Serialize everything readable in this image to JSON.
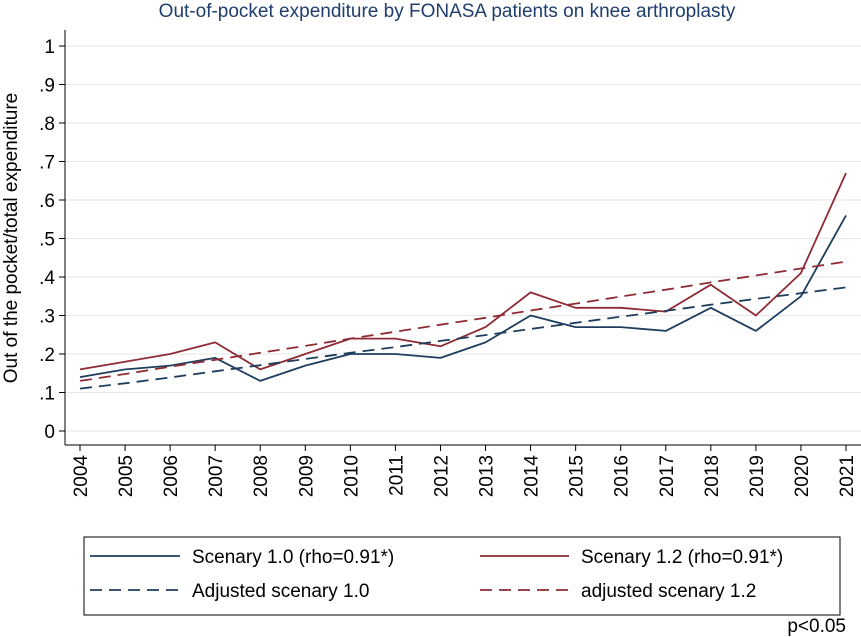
{
  "chart_data": {
    "type": "line",
    "title": "Out-of-pocket expenditure by FONASA patients on knee arthroplasty",
    "xlabel": "",
    "ylabel": "Out of the pocket/total expenditure",
    "x": [
      "2004",
      "2005",
      "2006",
      "2007",
      "2008",
      "2009",
      "2010",
      "2011",
      "2012",
      "2013",
      "2014",
      "2015",
      "2016",
      "2017",
      "2018",
      "2019",
      "2020",
      "2021"
    ],
    "ylim": [
      0,
      1
    ],
    "yticks": [
      0,
      0.1,
      0.2,
      0.3,
      0.4,
      0.5,
      0.6,
      0.7,
      0.8,
      0.9,
      1
    ],
    "ytick_labels": [
      "0",
      ".1",
      ".2",
      ".3",
      ".4",
      ".5",
      ".6",
      ".7",
      ".8",
      ".9",
      "1"
    ],
    "grid": true,
    "legend_position": "bottom",
    "series": [
      {
        "name": "Scenary 1.0 (rho=0.91*)",
        "color": "#1f3e5f",
        "style": "solid",
        "values": [
          0.14,
          0.16,
          0.17,
          0.19,
          0.13,
          0.17,
          0.2,
          0.2,
          0.19,
          0.23,
          0.3,
          0.27,
          0.27,
          0.26,
          0.32,
          0.26,
          0.35,
          0.56
        ]
      },
      {
        "name": "Scenary 1.2 (rho=0.91*)",
        "color": "#8e2b34",
        "style": "solid",
        "values": [
          0.16,
          0.18,
          0.2,
          0.23,
          0.16,
          0.2,
          0.24,
          0.24,
          0.22,
          0.27,
          0.36,
          0.32,
          0.32,
          0.31,
          0.38,
          0.3,
          0.41,
          0.67
        ]
      },
      {
        "name": "Adjusted scenary 1.0",
        "color": "#1f3e5f",
        "style": "dashed",
        "values": [
          0.11,
          0.124,
          0.139,
          0.155,
          0.171,
          0.187,
          0.203,
          0.218,
          0.234,
          0.249,
          0.265,
          0.281,
          0.297,
          0.312,
          0.328,
          0.343,
          0.358,
          0.373
        ]
      },
      {
        "name": "adjusted scenary 1.2",
        "color": "#8e2b34",
        "style": "dashed",
        "values": [
          0.13,
          0.148,
          0.167,
          0.185,
          0.203,
          0.221,
          0.24,
          0.258,
          0.276,
          0.294,
          0.313,
          0.331,
          0.349,
          0.367,
          0.386,
          0.404,
          0.422,
          0.44
        ]
      }
    ],
    "note": "p<0.05"
  }
}
